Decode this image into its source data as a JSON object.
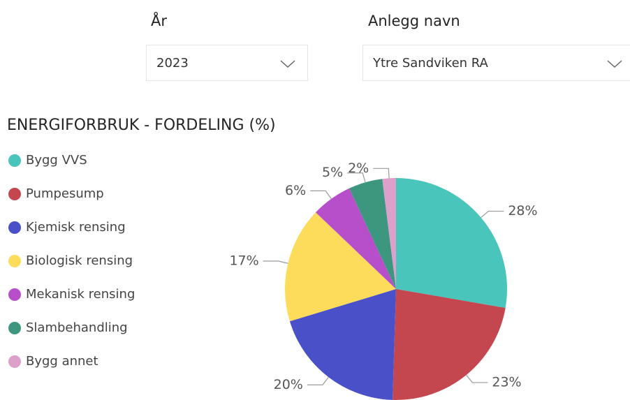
{
  "slicers": [
    {
      "label": "År",
      "value": "2023"
    },
    {
      "label": "Anlegg navn",
      "value": "Ytre Sandviken RA"
    }
  ],
  "chart_data": {
    "type": "pie",
    "title": "ENERGIFORBRUK - FORDELING (%)",
    "categories": [
      "Bygg VVS",
      "Pumpesump",
      "Kjemisk rensing",
      "Biologisk rensing",
      "Mekanisk rensing",
      "Slambehandling",
      "Bygg annet"
    ],
    "values": [
      28,
      23,
      20,
      17,
      6,
      5,
      2
    ],
    "value_labels": [
      "28%",
      "23%",
      "20%",
      "17%",
      "6%",
      "5%",
      "2%"
    ],
    "colors": [
      "#4AC5BB",
      "#C4474F",
      "#4A51C8",
      "#FDDC5C",
      "#B74FCB",
      "#3D977F",
      "#DDA0CB"
    ],
    "legend": "left"
  }
}
